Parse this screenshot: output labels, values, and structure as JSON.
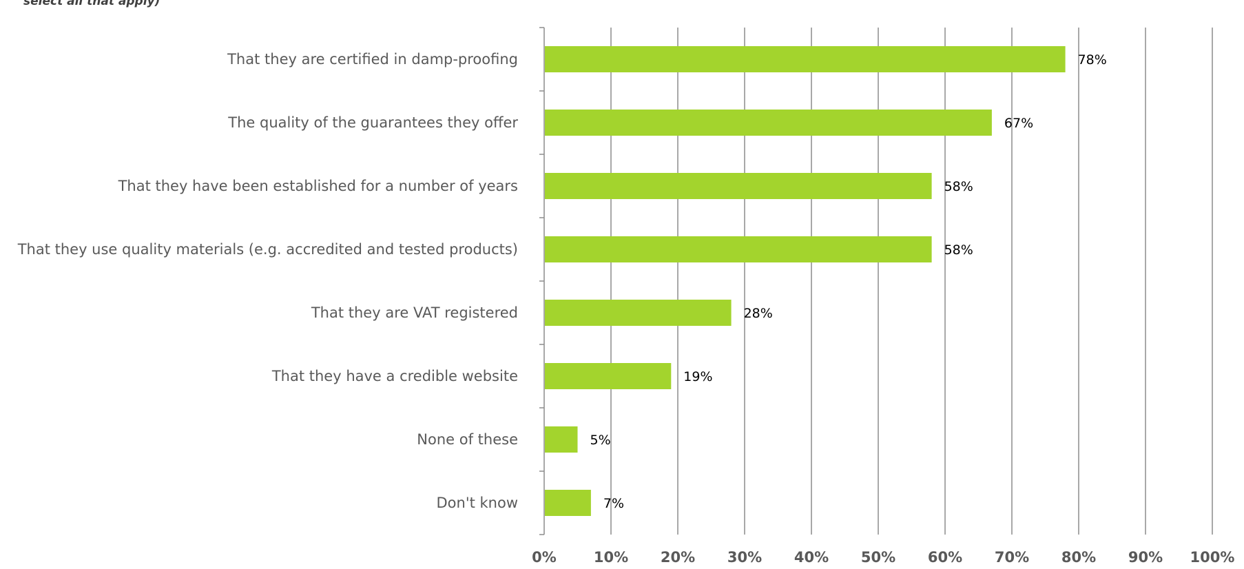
{
  "chart_data": {
    "type": "bar",
    "orientation": "horizontal",
    "subtitle": "select all that apply)",
    "categories": [
      "That they are certified in damp-proofing",
      "The quality of the guarantees they offer",
      "That they have been established for a number of years",
      "That they use quality materials (e.g. accredited and tested products)",
      "That they are VAT registered",
      "That they have a credible website",
      "None of these",
      "Don't know"
    ],
    "values": [
      78,
      67,
      58,
      58,
      28,
      19,
      5,
      7
    ],
    "value_labels": [
      "78%",
      "67%",
      "58%",
      "58%",
      "28%",
      "19%",
      "5%",
      "7%"
    ],
    "xlim": [
      0,
      100
    ],
    "x_ticks": [
      0,
      10,
      20,
      30,
      40,
      50,
      60,
      70,
      80,
      90,
      100
    ],
    "x_tick_labels": [
      "0%",
      "10%",
      "20%",
      "30%",
      "40%",
      "50%",
      "60%",
      "70%",
      "80%",
      "90%",
      "100%"
    ],
    "grid": "vertical",
    "legend": "none",
    "colors": {
      "bar": "#a3d42d",
      "grid": "#8c8c8c",
      "axis": "#8c8c8c",
      "category_text": "#595959",
      "value_text": "#000000",
      "tick_text": "#595959"
    }
  }
}
